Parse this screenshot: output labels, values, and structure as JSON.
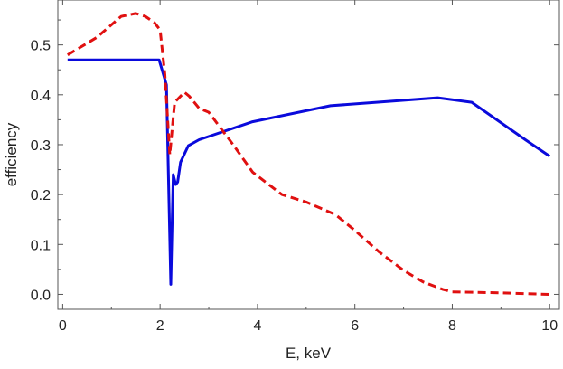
{
  "chart_data": {
    "type": "line",
    "xlabel": "E, keV",
    "ylabel": "efficiency",
    "xlim": [
      -0.1,
      10.2
    ],
    "ylim": [
      -0.03,
      0.59
    ],
    "grid": false,
    "x_ticks": [
      0,
      2,
      4,
      6,
      8,
      10
    ],
    "x_tick_labels": [
      "0",
      "2",
      "4",
      "6",
      "8",
      "10"
    ],
    "y_ticks": [
      0.0,
      0.1,
      0.2,
      0.3,
      0.4,
      0.5
    ],
    "y_tick_labels": [
      "0.0",
      "0.1",
      "0.2",
      "0.3",
      "0.4",
      "0.5"
    ],
    "series": [
      {
        "color": "#0a0adc",
        "style": "solid",
        "x": [
          0.1,
          1.98,
          2.13,
          2.22,
          2.27,
          2.32,
          2.36,
          2.42,
          2.58,
          2.8,
          3.9,
          5.5,
          7.7,
          8.4,
          9.5,
          10.0
        ],
        "y": [
          0.47,
          0.47,
          0.42,
          0.02,
          0.24,
          0.22,
          0.225,
          0.265,
          0.298,
          0.31,
          0.346,
          0.378,
          0.394,
          0.385,
          0.31,
          0.277
        ]
      },
      {
        "color": "#e01010",
        "style": "dashed",
        "x": [
          0.1,
          0.7,
          1.2,
          1.5,
          1.7,
          1.88,
          2.0,
          2.1,
          2.2,
          2.3,
          2.5,
          2.6,
          2.8,
          3.0,
          3.5,
          3.9,
          4.5,
          5.0,
          5.6,
          6.0,
          6.5,
          7.0,
          7.4,
          7.8,
          8.0,
          9.0,
          10.0
        ],
        "y": [
          0.48,
          0.515,
          0.557,
          0.563,
          0.557,
          0.545,
          0.53,
          0.44,
          0.28,
          0.385,
          0.405,
          0.397,
          0.373,
          0.365,
          0.3,
          0.245,
          0.2,
          0.185,
          0.16,
          0.128,
          0.085,
          0.048,
          0.025,
          0.01,
          0.005,
          0.003,
          0.0
        ]
      }
    ]
  }
}
